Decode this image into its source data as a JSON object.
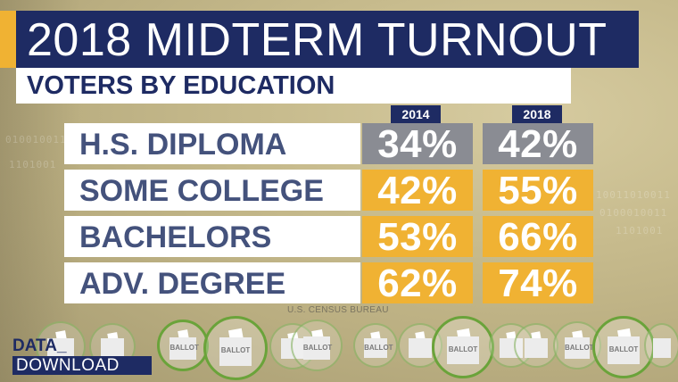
{
  "header": {
    "title": "2018 MIDTERM TURNOUT",
    "subtitle": "VOTERS BY EDUCATION"
  },
  "columns": [
    "2014",
    "2018"
  ],
  "rows": [
    {
      "label": "H.S. DIPLOMA",
      "values": [
        "34%",
        "42%"
      ],
      "cell_style": "gray"
    },
    {
      "label": "SOME COLLEGE",
      "values": [
        "42%",
        "55%"
      ],
      "cell_style": "gold"
    },
    {
      "label": "BACHELORS",
      "values": [
        "53%",
        "66%"
      ],
      "cell_style": "gold"
    },
    {
      "label": "ADV. DEGREE",
      "values": [
        "62%",
        "74%"
      ],
      "cell_style": "gold"
    }
  ],
  "source": "U.S. CENSUS BUREAU",
  "ballot_label": "BALLOT",
  "logo": {
    "line1": "DATA_",
    "line2": "DOWNLOAD"
  },
  "colors": {
    "navy": "#1e2b63",
    "gold": "#f0b233",
    "gray": "#8a8c93",
    "label_text": "#44527c"
  }
}
